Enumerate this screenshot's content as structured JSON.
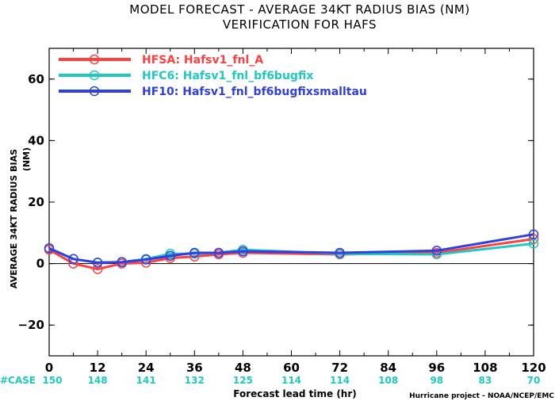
{
  "chart_data": {
    "type": "line",
    "title": "MODEL FORECAST - AVERAGE 34KT RADIUS BIAS (NM)",
    "subtitle": "VERIFICATION FOR HAFS",
    "xlabel": "Forecast lead time (hr)",
    "ylabel": "AVERAGE 34KT RADIUS BIAS",
    "ylabel_unit": "(NM)",
    "xlim": [
      0,
      120
    ],
    "ylim": [
      -30,
      70
    ],
    "x_ticks": [
      0,
      12,
      24,
      36,
      48,
      60,
      72,
      84,
      96,
      108,
      120
    ],
    "y_ticks": [
      -20,
      0,
      20,
      40,
      60
    ],
    "zero_line": true,
    "legend_position": "top-left",
    "series": [
      {
        "name": "HFSA:",
        "label": "Hafsv1_fnl_A",
        "color": "#ff4040",
        "x": [
          0,
          6,
          12,
          18,
          24,
          30,
          36,
          42,
          48,
          72,
          96,
          120
        ],
        "values": [
          4.5,
          0.0,
          -1.8,
          0.0,
          0.3,
          1.8,
          2.3,
          3.0,
          3.5,
          3.0,
          3.5,
          8.0
        ]
      },
      {
        "name": "HFC6:",
        "label": "Hafsv1_fnl_bf6bugfix",
        "color": "#20c8c0",
        "x": [
          0,
          6,
          12,
          18,
          24,
          30,
          36,
          42,
          48,
          72,
          96,
          120
        ],
        "values": [
          5.0,
          1.5,
          0.3,
          0.5,
          1.5,
          3.2,
          3.2,
          3.5,
          4.5,
          3.2,
          3.0,
          6.5
        ]
      },
      {
        "name": "HF10:",
        "label": "Hafsv1_fnl_bf6bugfixsmalltau",
        "color": "#3040e0",
        "x": [
          0,
          6,
          12,
          18,
          24,
          30,
          36,
          42,
          48,
          72,
          96,
          120
        ],
        "values": [
          5.0,
          1.5,
          0.3,
          0.5,
          1.3,
          2.5,
          3.5,
          3.5,
          4.0,
          3.5,
          4.2,
          9.5
        ]
      }
    ],
    "cases": {
      "label": "#CASE",
      "x": [
        0,
        12,
        24,
        36,
        48,
        60,
        72,
        84,
        96,
        108,
        120
      ],
      "values": [
        "150",
        "148",
        "141",
        "132",
        "125",
        "114",
        "114",
        "108",
        "98",
        "83",
        "70"
      ],
      "color": "#20c8c0"
    },
    "credit": "Hurricane project - NOAA/NCEP/EMC"
  }
}
